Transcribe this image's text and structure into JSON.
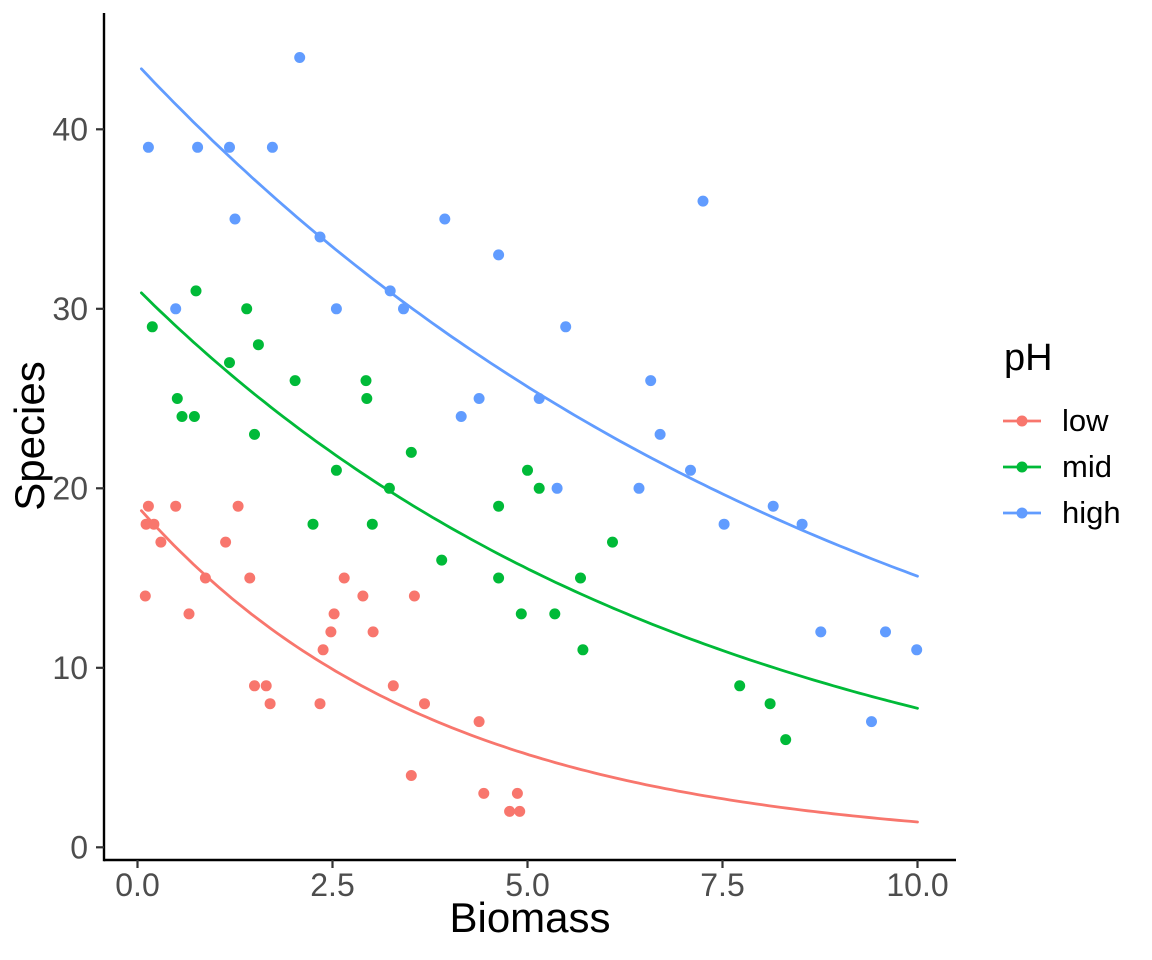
{
  "figure": {
    "kind": "ggplot scatter with exponential smooth fits",
    "background": "#FFFFFF",
    "panel_grid": "none",
    "axis_line_color": "#000000",
    "tick_text_color": "#4D4D4D"
  },
  "axes": {
    "x": {
      "title": "Biomass",
      "tick_labels": [
        "0.0",
        "2.5",
        "5.0",
        "7.5",
        "10.0"
      ],
      "tick_values": [
        0,
        2.5,
        5,
        7.5,
        10
      ]
    },
    "y": {
      "title": "Species",
      "tick_labels": [
        "0",
        "10",
        "20",
        "30",
        "40"
      ],
      "tick_values": [
        0,
        10,
        20,
        30,
        40
      ]
    }
  },
  "legend": {
    "title": "pH",
    "position": "right",
    "entries": [
      {
        "label": "low",
        "color": "#F8766D"
      },
      {
        "label": "mid",
        "color": "#00BA38"
      },
      {
        "label": "high",
        "color": "#619CFF"
      }
    ]
  },
  "chart_data": {
    "type": "scatter",
    "title": "",
    "xlabel": "Biomass",
    "ylabel": "Species",
    "xlim": [
      -0.45,
      10.5
    ],
    "ylim": [
      -0.7,
      46.5
    ],
    "grid": false,
    "legend_position": "right",
    "series": [
      {
        "name": "low",
        "color": "#F8766D",
        "points": [
          [
            0.1,
            14
          ],
          [
            0.11,
            18
          ],
          [
            0.14,
            19
          ],
          [
            0.21,
            18
          ],
          [
            0.3,
            17
          ],
          [
            0.49,
            19
          ],
          [
            0.66,
            13
          ],
          [
            0.87,
            15
          ],
          [
            1.13,
            17
          ],
          [
            1.29,
            19
          ],
          [
            1.44,
            15
          ],
          [
            1.5,
            9
          ],
          [
            1.65,
            9
          ],
          [
            1.7,
            8
          ],
          [
            2.34,
            8
          ],
          [
            2.38,
            11
          ],
          [
            2.48,
            12
          ],
          [
            2.52,
            13
          ],
          [
            2.65,
            15
          ],
          [
            2.89,
            14
          ],
          [
            3.02,
            12
          ],
          [
            3.28,
            9
          ],
          [
            3.51,
            4
          ],
          [
            3.55,
            14
          ],
          [
            3.68,
            8
          ],
          [
            4.38,
            7
          ],
          [
            4.44,
            3
          ],
          [
            4.77,
            2
          ],
          [
            4.87,
            3
          ],
          [
            4.9,
            2
          ]
        ],
        "smooth": {
          "model": "exponential",
          "a": 19.0,
          "k": 0.26,
          "x_start": 0.05,
          "x_end": 10.0,
          "formula": "Species = 19.0 * exp(-0.26 * Biomass)"
        }
      },
      {
        "name": "mid",
        "color": "#00BA38",
        "points": [
          [
            0.19,
            29
          ],
          [
            0.51,
            25
          ],
          [
            0.57,
            24
          ],
          [
            0.73,
            24
          ],
          [
            0.75,
            31
          ],
          [
            1.18,
            27
          ],
          [
            1.4,
            30
          ],
          [
            1.5,
            23
          ],
          [
            1.55,
            28
          ],
          [
            2.02,
            26
          ],
          [
            2.25,
            18
          ],
          [
            2.55,
            21
          ],
          [
            2.93,
            26
          ],
          [
            2.94,
            25
          ],
          [
            3.01,
            18
          ],
          [
            3.23,
            20
          ],
          [
            3.51,
            22
          ],
          [
            3.9,
            16
          ],
          [
            4.63,
            19
          ],
          [
            4.63,
            15
          ],
          [
            4.92,
            13
          ],
          [
            5.0,
            21
          ],
          [
            5.15,
            20
          ],
          [
            5.35,
            13
          ],
          [
            5.68,
            15
          ],
          [
            5.71,
            11
          ],
          [
            6.09,
            17
          ],
          [
            7.72,
            9
          ],
          [
            8.11,
            8
          ],
          [
            8.31,
            6
          ]
        ],
        "smooth": {
          "model": "exponential",
          "a": 31.1,
          "k": 0.139,
          "x_start": 0.05,
          "x_end": 10.0,
          "formula": "Species = 31.1 * exp(-0.139 * Biomass)"
        }
      },
      {
        "name": "high",
        "color": "#619CFF",
        "points": [
          [
            0.14,
            39
          ],
          [
            0.49,
            30
          ],
          [
            0.77,
            39
          ],
          [
            1.18,
            39
          ],
          [
            1.25,
            35
          ],
          [
            1.73,
            39
          ],
          [
            2.08,
            44
          ],
          [
            2.34,
            34
          ],
          [
            2.55,
            30
          ],
          [
            3.24,
            31
          ],
          [
            3.41,
            30
          ],
          [
            3.94,
            35
          ],
          [
            4.15,
            24
          ],
          [
            4.38,
            25
          ],
          [
            4.63,
            33
          ],
          [
            5.15,
            25
          ],
          [
            5.38,
            20
          ],
          [
            5.49,
            29
          ],
          [
            6.43,
            20
          ],
          [
            6.58,
            26
          ],
          [
            6.7,
            23
          ],
          [
            7.09,
            21
          ],
          [
            7.25,
            36
          ],
          [
            7.52,
            18
          ],
          [
            8.15,
            19
          ],
          [
            8.52,
            18
          ],
          [
            8.76,
            12
          ],
          [
            9.41,
            7
          ],
          [
            9.59,
            12
          ],
          [
            9.99,
            11
          ]
        ],
        "smooth": {
          "model": "exponential",
          "a": 43.6,
          "k": 0.106,
          "x_start": 0.05,
          "x_end": 10.0,
          "formula": "Species = 43.6 * exp(-0.106 * Biomass)"
        }
      }
    ]
  }
}
